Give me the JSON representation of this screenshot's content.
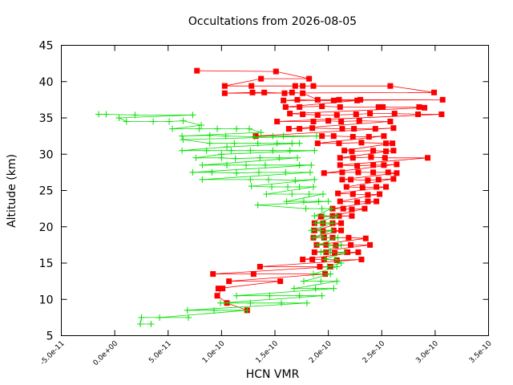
{
  "chart_data": {
    "type": "line",
    "title": "Occultations from 2026-08-05",
    "xlabel": "HCN VMR",
    "ylabel": "Altitude (km)",
    "xlim": [
      -5e-11,
      3.5e-10
    ],
    "ylim": [
      5,
      45
    ],
    "xticks": [
      -5e-11,
      0,
      5e-11,
      1e-10,
      1.5e-10,
      2e-10,
      2.5e-10,
      3e-10,
      3.5e-10
    ],
    "xtick_labels": [
      "-5.0e-11",
      "0.0e+00",
      "5.0e-11",
      "1.0e-10",
      "1.5e-10",
      "2.0e-10",
      "2.5e-10",
      "3.0e-10",
      "3.5e-10"
    ],
    "yticks": [
      5,
      10,
      15,
      20,
      25,
      30,
      35,
      40,
      45
    ],
    "ytick_labels": [
      "5",
      "10",
      "15",
      "20",
      "25",
      "30",
      "35",
      "40",
      "45"
    ],
    "grid": false,
    "legend": "none",
    "series": [
      {
        "color": "#ff0000",
        "marker": "square",
        "points": [
          [
            7.7e-11,
            41.5
          ],
          [
            1.51e-10,
            41.4
          ],
          [
            1.82e-10,
            40.4
          ],
          [
            1.37e-10,
            40.4
          ],
          [
            1.03e-10,
            39.4
          ],
          [
            1.28e-10,
            39.4
          ],
          [
            1.69e-10,
            39.4
          ],
          [
            1.76e-10,
            39.4
          ],
          [
            1.86e-10,
            39.4
          ],
          [
            2.58e-10,
            39.4
          ],
          [
            2.99e-10,
            38.5
          ],
          [
            1.03e-10,
            38.4
          ],
          [
            1.29e-10,
            38.5
          ],
          [
            1.4e-10,
            38.5
          ],
          [
            1.59e-10,
            38.4
          ],
          [
            1.66e-10,
            38.5
          ],
          [
            1.76e-10,
            38.4
          ],
          [
            1.9e-10,
            37.5
          ],
          [
            2.1e-10,
            37.5
          ],
          [
            2.3e-10,
            37.5
          ],
          [
            3.07e-10,
            37.5
          ],
          [
            1.58e-10,
            37.4
          ],
          [
            1.71e-10,
            37.5
          ],
          [
            2.05e-10,
            37.4
          ],
          [
            2.27e-10,
            37.4
          ],
          [
            1.6e-10,
            36.5
          ],
          [
            1.73e-10,
            36.5
          ],
          [
            1.94e-10,
            36.6
          ],
          [
            2.11e-10,
            36.5
          ],
          [
            2.47e-10,
            36.5
          ],
          [
            2.51e-10,
            36.5
          ],
          [
            2.85e-10,
            36.5
          ],
          [
            2.9e-10,
            36.4
          ],
          [
            1.64e-10,
            35.6
          ],
          [
            1.76e-10,
            35.5
          ],
          [
            1.9e-10,
            35.4
          ],
          [
            2.08e-10,
            35.4
          ],
          [
            2.26e-10,
            35.5
          ],
          [
            2.39e-10,
            35.6
          ],
          [
            2.62e-10,
            35.6
          ],
          [
            2.84e-10,
            35.5
          ],
          [
            3.06e-10,
            35.5
          ],
          [
            1.52e-10,
            34.5
          ],
          [
            1.86e-10,
            34.5
          ],
          [
            2e-10,
            34.6
          ],
          [
            2.12e-10,
            34.5
          ],
          [
            2.29e-10,
            34.6
          ],
          [
            2.58e-10,
            34.5
          ],
          [
            1.63e-10,
            33.5
          ],
          [
            1.73e-10,
            33.5
          ],
          [
            1.85e-10,
            33.6
          ],
          [
            2.13e-10,
            33.5
          ],
          [
            2.24e-10,
            33.5
          ],
          [
            2.44e-10,
            33.5
          ],
          [
            2.61e-10,
            33.6
          ],
          [
            1.32e-10,
            32.5
          ],
          [
            1.94e-10,
            32.5
          ],
          [
            2.05e-10,
            32.5
          ],
          [
            2.23e-10,
            32.4
          ],
          [
            2.38e-10,
            32.4
          ],
          [
            2.52e-10,
            32.5
          ],
          [
            1.9e-10,
            31.5
          ],
          [
            2.1e-10,
            31.5
          ],
          [
            2.31e-10,
            31.6
          ],
          [
            2.54e-10,
            31.5
          ],
          [
            2.6e-10,
            31.5
          ],
          [
            2.15e-10,
            30.5
          ],
          [
            2.22e-10,
            30.4
          ],
          [
            2.42e-10,
            30.5
          ],
          [
            2.54e-10,
            30.4
          ],
          [
            2.61e-10,
            30.5
          ],
          [
            2.11e-10,
            29.5
          ],
          [
            2.23e-10,
            29.5
          ],
          [
            2.4e-10,
            29.6
          ],
          [
            2.53e-10,
            29.5
          ],
          [
            2.93e-10,
            29.5
          ],
          [
            2.11e-10,
            28.5
          ],
          [
            2.27e-10,
            28.4
          ],
          [
            2.42e-10,
            28.5
          ],
          [
            2.52e-10,
            28.5
          ],
          [
            2.64e-10,
            28.6
          ],
          [
            1.96e-10,
            27.4
          ],
          [
            2.13e-10,
            27.5
          ],
          [
            2.28e-10,
            27.5
          ],
          [
            2.42e-10,
            27.5
          ],
          [
            2.56e-10,
            27.5
          ],
          [
            2.64e-10,
            27.4
          ],
          [
            2.13e-10,
            26.5
          ],
          [
            2.21e-10,
            26.5
          ],
          [
            2.37e-10,
            26.4
          ],
          [
            2.47e-10,
            26.5
          ],
          [
            2.61e-10,
            26.6
          ],
          [
            2.17e-10,
            25.5
          ],
          [
            2.32e-10,
            25.4
          ],
          [
            2.45e-10,
            25.5
          ],
          [
            2.54e-10,
            25.5
          ],
          [
            2.09e-10,
            24.6
          ],
          [
            2.23e-10,
            24.5
          ],
          [
            2.37e-10,
            24.4
          ],
          [
            2.48e-10,
            24.5
          ],
          [
            2.11e-10,
            23.5
          ],
          [
            2.27e-10,
            23.4
          ],
          [
            2.37e-10,
            23.5
          ],
          [
            2.45e-10,
            23.5
          ],
          [
            2.04e-10,
            22.5
          ],
          [
            2.14e-10,
            22.5
          ],
          [
            2.22e-10,
            22.4
          ],
          [
            2.34e-10,
            22.5
          ],
          [
            2.04e-10,
            21.5
          ],
          [
            2.1e-10,
            21.5
          ],
          [
            2.22e-10,
            21.5
          ],
          [
            1.93e-10,
            21.4
          ],
          [
            1.87e-10,
            20.5
          ],
          [
            1.95e-10,
            20.5
          ],
          [
            2.04e-10,
            20.5
          ],
          [
            2.12e-10,
            20.5
          ],
          [
            1.87e-10,
            19.5
          ],
          [
            1.95e-10,
            19.4
          ],
          [
            2.05e-10,
            19.5
          ],
          [
            2.12e-10,
            19.5
          ],
          [
            1.86e-10,
            18.5
          ],
          [
            1.96e-10,
            18.5
          ],
          [
            2.04e-10,
            18.5
          ],
          [
            2.19e-10,
            18.5
          ],
          [
            2.35e-10,
            18.4
          ],
          [
            1.89e-10,
            17.5
          ],
          [
            1.98e-10,
            17.5
          ],
          [
            2.07e-10,
            17.4
          ],
          [
            2.21e-10,
            17.5
          ],
          [
            2.39e-10,
            17.5
          ],
          [
            1.87e-10,
            16.5
          ],
          [
            1.98e-10,
            16.5
          ],
          [
            2.06e-10,
            16.4
          ],
          [
            2.18e-10,
            16.5
          ],
          [
            2.28e-10,
            16.5
          ],
          [
            1.76e-10,
            15.5
          ],
          [
            1.85e-10,
            15.5
          ],
          [
            1.96e-10,
            15.5
          ],
          [
            2.08e-10,
            15.4
          ],
          [
            2.31e-10,
            15.5
          ],
          [
            1.36e-10,
            14.5
          ],
          [
            1.92e-10,
            14.5
          ],
          [
            2.02e-10,
            14.5
          ],
          [
            9.2e-11,
            13.5
          ],
          [
            1.3e-10,
            13.5
          ],
          [
            1.97e-10,
            13.5
          ],
          [
            1.07e-10,
            12.5
          ],
          [
            1.55e-10,
            12.5
          ],
          [
            9.7e-11,
            11.5
          ],
          [
            1.01e-10,
            11.5
          ],
          [
            9.6e-11,
            10.5
          ],
          [
            1.05e-10,
            9.5
          ],
          [
            1.24e-10,
            8.5
          ]
        ]
      },
      {
        "color": "#00e000",
        "marker": "plus",
        "points": [
          [
            -1.5e-11,
            35.5
          ],
          [
            -8e-12,
            35.5
          ],
          [
            1.9e-11,
            35.4
          ],
          [
            7.3e-11,
            35.4
          ],
          [
            4e-12,
            35.0
          ],
          [
            1.1e-11,
            34.5
          ],
          [
            3.6e-11,
            34.5
          ],
          [
            5.1e-11,
            34.5
          ],
          [
            6.4e-11,
            34.6
          ],
          [
            8.1e-11,
            34.0
          ],
          [
            5.4e-11,
            33.5
          ],
          [
            7.9e-11,
            33.5
          ],
          [
            9.6e-11,
            33.5
          ],
          [
            1.14e-10,
            33.5
          ],
          [
            1.26e-10,
            33.5
          ],
          [
            1.37e-10,
            33.0
          ],
          [
            6.3e-11,
            32.5
          ],
          [
            8.9e-11,
            32.6
          ],
          [
            1.04e-10,
            32.5
          ],
          [
            1.31e-10,
            32.4
          ],
          [
            1.48e-10,
            32.5
          ],
          [
            1.58e-10,
            32.5
          ],
          [
            1.89e-10,
            32.5
          ],
          [
            6.4e-11,
            32.0
          ],
          [
            8.9e-11,
            31.5
          ],
          [
            1.12e-10,
            31.5
          ],
          [
            1.34e-10,
            31.5
          ],
          [
            1.52e-10,
            31.5
          ],
          [
            1.66e-10,
            31.5
          ],
          [
            1.73e-10,
            31.5
          ],
          [
            1.05e-10,
            31.0
          ],
          [
            6.3e-11,
            30.5
          ],
          [
            8.6e-11,
            30.5
          ],
          [
            1.09e-10,
            30.5
          ],
          [
            1.27e-10,
            30.5
          ],
          [
            1.48e-10,
            30.5
          ],
          [
            1.64e-10,
            30.5
          ],
          [
            1.87e-10,
            30.5
          ],
          [
            1e-10,
            30.0
          ],
          [
            7.6e-11,
            29.5
          ],
          [
            1e-10,
            29.5
          ],
          [
            1.13e-10,
            29.4
          ],
          [
            1.36e-10,
            29.5
          ],
          [
            1.54e-10,
            29.5
          ],
          [
            1.71e-10,
            29.5
          ],
          [
            8.2e-11,
            28.5
          ],
          [
            1.05e-10,
            28.5
          ],
          [
            1.23e-10,
            28.5
          ],
          [
            1.41e-10,
            28.5
          ],
          [
            1.73e-10,
            28.5
          ],
          [
            1.84e-10,
            28.5
          ],
          [
            7.3e-11,
            27.5
          ],
          [
            9.1e-11,
            27.5
          ],
          [
            1.14e-10,
            27.4
          ],
          [
            1.35e-10,
            27.5
          ],
          [
            1.6e-10,
            27.5
          ],
          [
            1.83e-10,
            27.5
          ],
          [
            8.2e-11,
            26.5
          ],
          [
            1.27e-10,
            26.5
          ],
          [
            1.44e-10,
            26.5
          ],
          [
            1.69e-10,
            26.4
          ],
          [
            1.87e-10,
            26.5
          ],
          [
            1.28e-10,
            25.6
          ],
          [
            1.47e-10,
            25.5
          ],
          [
            1.62e-10,
            25.5
          ],
          [
            1.73e-10,
            25.5
          ],
          [
            1.86e-10,
            25.5
          ],
          [
            1.42e-10,
            24.5
          ],
          [
            1.66e-10,
            24.5
          ],
          [
            1.82e-10,
            24.5
          ],
          [
            1.95e-10,
            24.5
          ],
          [
            1.61e-10,
            23.5
          ],
          [
            1.77e-10,
            23.5
          ],
          [
            1.91e-10,
            23.5
          ],
          [
            2e-10,
            23.5
          ],
          [
            1.34e-10,
            23.0
          ],
          [
            1.79e-10,
            22.5
          ],
          [
            1.94e-10,
            22.5
          ],
          [
            2.03e-10,
            22.5
          ],
          [
            1.87e-10,
            21.5
          ],
          [
            1.96e-10,
            21.5
          ],
          [
            2.08e-10,
            21.5
          ],
          [
            1.88e-10,
            20.5
          ],
          [
            1.95e-10,
            20.5
          ],
          [
            2.04e-10,
            20.5
          ],
          [
            1.84e-10,
            19.5
          ],
          [
            1.93e-10,
            19.5
          ],
          [
            2.03e-10,
            19.5
          ],
          [
            1.86e-10,
            18.5
          ],
          [
            1.95e-10,
            18.5
          ],
          [
            2.09e-10,
            18.5
          ],
          [
            1.9e-10,
            17.5
          ],
          [
            2e-10,
            17.5
          ],
          [
            2.12e-10,
            17.5
          ],
          [
            1.93e-10,
            16.5
          ],
          [
            2.02e-10,
            16.5
          ],
          [
            2.15e-10,
            16.5
          ],
          [
            1.97e-10,
            15.5
          ],
          [
            2.07e-10,
            15.5
          ],
          [
            2.12e-10,
            15.0
          ],
          [
            1.99e-10,
            14.5
          ],
          [
            2.08e-10,
            14.5
          ],
          [
            1.86e-10,
            13.5
          ],
          [
            2.02e-10,
            13.5
          ],
          [
            1.77e-10,
            12.5
          ],
          [
            1.93e-10,
            12.5
          ],
          [
            2.08e-10,
            12.5
          ],
          [
            1.68e-10,
            11.5
          ],
          [
            1.88e-10,
            11.5
          ],
          [
            2.05e-10,
            11.5
          ],
          [
            1.14e-10,
            10.5
          ],
          [
            1.45e-10,
            10.5
          ],
          [
            1.73e-10,
            10.5
          ],
          [
            1.94e-10,
            10.5
          ],
          [
            9.9e-11,
            9.5
          ],
          [
            1.27e-10,
            9.5
          ],
          [
            1.56e-10,
            9.5
          ],
          [
            1.8e-10,
            9.5
          ],
          [
            6.8e-11,
            8.5
          ],
          [
            9.3e-11,
            8.5
          ],
          [
            1.24e-10,
            8.5
          ],
          [
            4.2e-11,
            7.5
          ],
          [
            6.9e-11,
            7.5
          ],
          [
            2.5e-11,
            7.5
          ],
          [
            2.4e-11,
            6.6
          ],
          [
            3.4e-11,
            6.6
          ]
        ]
      }
    ]
  }
}
